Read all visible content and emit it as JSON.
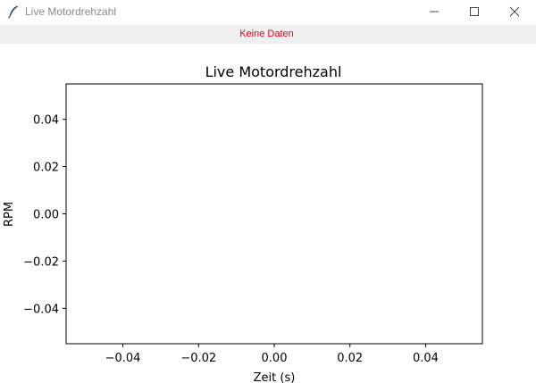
{
  "window": {
    "title": "Live Motordrehzahl",
    "icon": "feather-icon",
    "controls": {
      "minimize_icon": "minimize-icon",
      "maximize_icon": "maximize-icon",
      "close_icon": "close-icon"
    }
  },
  "status": {
    "text": "Keine Daten",
    "color": "#e0001b"
  },
  "chart_data": {
    "type": "line",
    "title": "Live Motordrehzahl",
    "xlabel": "Zeit (s)",
    "ylabel": "RPM",
    "x": [],
    "series": [],
    "xlim": [
      -0.055,
      0.055
    ],
    "ylim": [
      -0.055,
      0.055
    ],
    "x_ticks": [
      -0.04,
      -0.02,
      0.0,
      0.02,
      0.04
    ],
    "y_ticks": [
      0.04,
      0.02,
      0.0,
      -0.02,
      -0.04
    ],
    "x_tick_labels": [
      "−0.04",
      "−0.02",
      "0.00",
      "0.02",
      "0.04"
    ],
    "y_tick_labels": [
      "0.04",
      "0.02",
      "0.00",
      "−0.02",
      "−0.04"
    ],
    "grid": false
  }
}
